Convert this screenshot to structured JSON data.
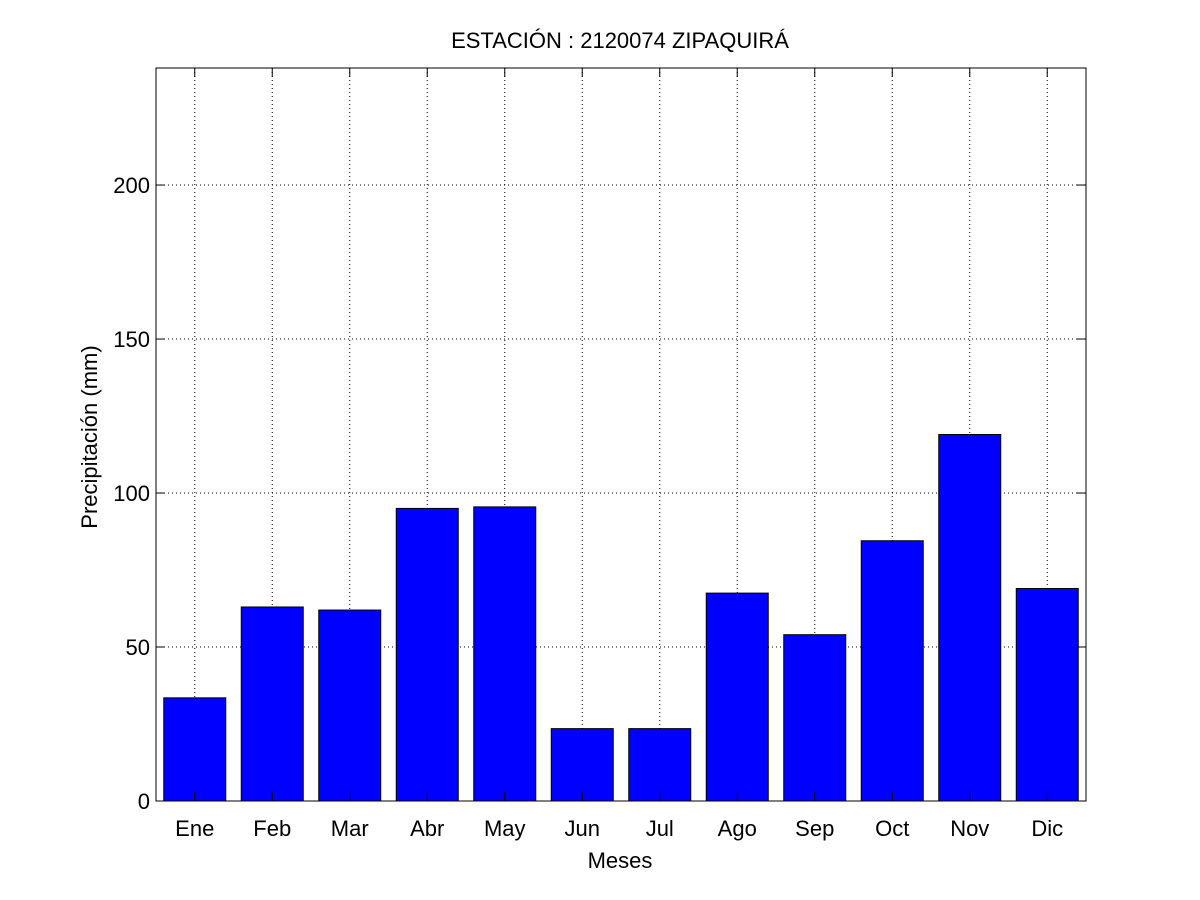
{
  "chart_data": {
    "type": "bar",
    "title": "ESTACIÓN : 2120074  ZIPAQUIRÁ",
    "xlabel": "Meses",
    "ylabel": "Precipitación (mm)",
    "categories": [
      "Ene",
      "Feb",
      "Mar",
      "Abr",
      "May",
      "Jun",
      "Jul",
      "Ago",
      "Sep",
      "Oct",
      "Nov",
      "Dic"
    ],
    "values": [
      33.5,
      63,
      62,
      95,
      95.5,
      23.5,
      23.5,
      67.5,
      54,
      84.5,
      119,
      69
    ],
    "ylim": [
      0,
      238
    ],
    "yticks": [
      0,
      50,
      100,
      150,
      200
    ],
    "grid": true,
    "bar_color": "#0000ff",
    "edge_color": "#000000"
  }
}
